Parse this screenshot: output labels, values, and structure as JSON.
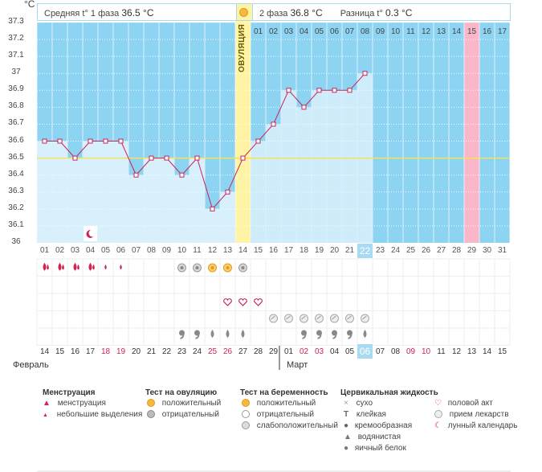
{
  "header": {
    "phase1_label": "Средняя t° 1 фаза",
    "phase1_value": "36.5 °C",
    "phase2_label": "2 фаза",
    "phase2_value": "36.8 °C",
    "diff_label": "Разница t°",
    "diff_value": "0.3 °C"
  },
  "ovulation_label": "ОВУЛЯЦИЯ",
  "colors": {
    "pre_ovulation_fill": "#d8f0fc",
    "post_ovulation_fill": "#cfecfb",
    "future_fill": "#8dd3f2",
    "ovulation_column": "#fff3a6",
    "highlight_column": "#f9b7c9",
    "line": "#c8235a",
    "coverline": "#f2e35c",
    "weekend_text": "#d4214f"
  },
  "chart_data": {
    "type": "line",
    "ylabel": "°C",
    "ylim": [
      36,
      37.3
    ],
    "yticks": [
      "37.3",
      "37.2",
      "37.1",
      "37",
      "36.9",
      "36.8",
      "36.7",
      "36.6",
      "36.5",
      "36.4",
      "36.3",
      "36.2",
      "36.1",
      "36"
    ],
    "cycle_days": [
      "01",
      "02",
      "03",
      "04",
      "05",
      "06",
      "07",
      "08",
      "09",
      "10",
      "11",
      "12",
      "13",
      "14",
      "15",
      "16",
      "17",
      "18",
      "19",
      "20",
      "21",
      "22",
      "23",
      "24",
      "25",
      "26",
      "27",
      "28",
      "29",
      "30",
      "31"
    ],
    "temperatures": [
      36.6,
      36.6,
      36.5,
      36.6,
      36.6,
      36.6,
      36.4,
      36.5,
      36.5,
      36.4,
      36.5,
      36.2,
      36.3,
      36.5,
      36.6,
      36.7,
      36.9,
      36.8,
      36.9,
      36.9,
      36.9,
      37.0
    ],
    "coverline": 36.5,
    "ovulation_day": 14,
    "current_day": 22,
    "highlight_day": 29,
    "post_ovulation_days": [
      "01",
      "02",
      "03",
      "04",
      "05",
      "06",
      "07",
      "08",
      "09",
      "10",
      "11",
      "12",
      "13",
      "14",
      "15",
      "16",
      "17"
    ],
    "dates": [
      "14",
      "15",
      "16",
      "17",
      "18",
      "19",
      "20",
      "21",
      "22",
      "23",
      "24",
      "25",
      "26",
      "27",
      "28",
      "29",
      "01",
      "02",
      "03",
      "04",
      "05",
      "06",
      "07",
      "08",
      "09",
      "10",
      "11",
      "12",
      "13",
      "14",
      "15"
    ],
    "weekend_dates_idx": [
      4,
      5,
      11,
      12,
      17,
      18,
      24,
      25
    ],
    "months": [
      "Февраль",
      "Март"
    ],
    "month_break_index": 16,
    "current_date_index": 21
  },
  "observations": {
    "menstruation_days": [
      1,
      2,
      3,
      4,
      5,
      6
    ],
    "menstruation_heavy_days": [
      1,
      2,
      3,
      4
    ],
    "lunar_day": 4,
    "ovulation_test_negative_days": [
      10,
      11,
      14
    ],
    "ovulation_test_positive_days": [
      12,
      13
    ],
    "intercourse_days": [
      13,
      14,
      15
    ],
    "medication_days": [
      16,
      17,
      18,
      19,
      20,
      21,
      22
    ],
    "fluid_creamy_days": [
      10,
      11,
      18,
      19,
      20,
      21
    ],
    "fluid_watery_days": [
      12,
      13,
      14,
      22
    ]
  },
  "legend": {
    "menstruation": {
      "title": "Менструация",
      "items": [
        "менструация",
        "небольшие выделения"
      ]
    },
    "ovulation_test": {
      "title": "Тест на овуляцию",
      "items": [
        "положительный",
        "отрицательный"
      ]
    },
    "pregnancy_test": {
      "title": "Тест на беременность",
      "items": [
        "положительный",
        "отрицательный",
        "слабоположительный"
      ]
    },
    "cervical_fluid": {
      "title": "Цервикальная жидкость",
      "items": [
        "сухо",
        "клейкая",
        "кремообразная",
        "водянистая",
        "яичный белок"
      ]
    },
    "other": {
      "items": [
        "половой акт",
        "прием лекарств",
        "лунный календарь"
      ]
    }
  }
}
